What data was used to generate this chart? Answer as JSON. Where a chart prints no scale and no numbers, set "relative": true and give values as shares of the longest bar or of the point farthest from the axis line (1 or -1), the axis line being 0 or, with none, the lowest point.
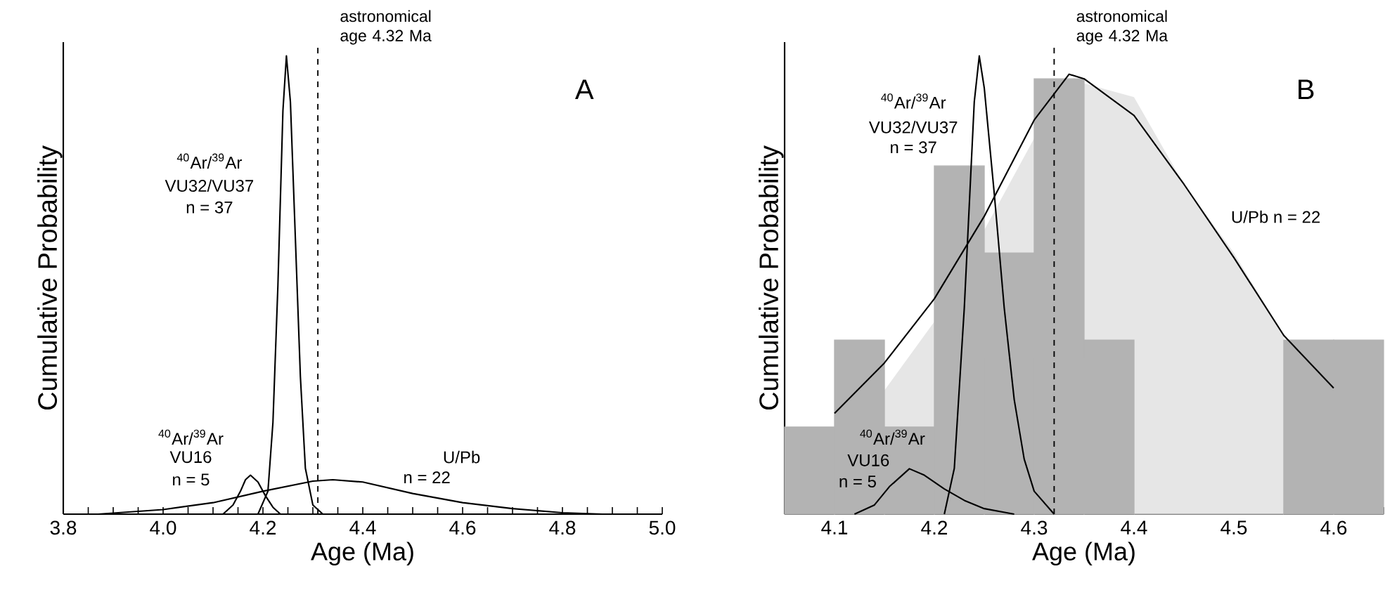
{
  "chart_data": [
    {
      "type": "line",
      "title": "A",
      "xlabel": "Age (Ma)",
      "ylabel": "Cumulative Probability",
      "relative": true,
      "xlim": [
        3.8,
        5.0
      ],
      "xticks": [
        3.8,
        {
          "value": 3.85,
          "label": null
        },
        {
          "value": 3.9,
          "label": null
        },
        {
          "value": 3.95,
          "label": null
        },
        {
          "value": 4.0,
          "label": "4.0"
        },
        {
          "value": 4.05,
          "label": null
        },
        {
          "value": 4.1,
          "label": null
        },
        {
          "value": 4.15,
          "label": null
        },
        4.2,
        {
          "value": 4.25,
          "label": null
        },
        {
          "value": 4.3,
          "label": null
        },
        {
          "value": 4.35,
          "label": null
        },
        4.4,
        {
          "value": 4.45,
          "label": null
        },
        {
          "value": 4.5,
          "label": null
        },
        {
          "value": 4.55,
          "label": null
        },
        4.6,
        {
          "value": 4.65,
          "label": null
        },
        {
          "value": 4.7,
          "label": null
        },
        {
          "value": 4.75,
          "label": null
        },
        4.8,
        {
          "value": 4.85,
          "label": null
        },
        {
          "value": 4.9,
          "label": null
        },
        {
          "value": 4.95,
          "label": null
        },
        {
          "value": 5.0,
          "label": "5.0"
        }
      ],
      "series": [
        {
          "type": "line",
          "color": "#000000",
          "x": [
            4.19,
            4.21,
            4.22,
            4.23,
            4.24,
            4.247,
            4.255,
            4.265,
            4.275,
            4.285,
            4.3,
            4.32
          ],
          "values": [
            0,
            0.05,
            0.2,
            0.5,
            0.88,
            1,
            0.9,
            0.6,
            0.3,
            0.1,
            0.02,
            0
          ]
        },
        {
          "type": "line",
          "color": "#000000",
          "x": [
            4.12,
            4.14,
            4.155,
            4.165,
            4.175,
            4.19,
            4.205,
            4.22,
            4.235
          ],
          "values": [
            0,
            0.02,
            0.05,
            0.075,
            0.085,
            0.07,
            0.04,
            0.015,
            0
          ]
        },
        {
          "type": "line",
          "color": "#000000",
          "x": [
            3.87,
            4.0,
            4.1,
            4.2,
            4.3,
            4.34,
            4.4,
            4.5,
            4.6,
            4.7,
            4.8,
            4.88
          ],
          "values": [
            0,
            0.01,
            0.025,
            0.05,
            0.072,
            0.075,
            0.07,
            0.045,
            0.025,
            0.012,
            0.003,
            0
          ]
        }
      ],
      "ref_lines": [
        {
          "axis": "x",
          "value": 4.31,
          "label": "astronomical age 4.32 Ma",
          "line_style": "dashed"
        }
      ],
      "annotations": [
        "$^{40}$Ar/$^{39}$Ar",
        "VU32/VU37",
        "n = 37",
        "$^{40}$Ar/$^{39}$Ar",
        "VU16",
        "n = 5",
        "U/Pb",
        "n = 22"
      ]
    },
    {
      "type": "histogram",
      "title": "B",
      "xlabel": "Age (Ma)",
      "ylabel": "Cumulative Probability",
      "relative": true,
      "xlim": [
        4.05,
        4.65
      ],
      "xticks": [
        {
          "value": 4.05,
          "label": null
        },
        {
          "value": 4.075,
          "label": null
        },
        4.1,
        {
          "value": 4.125,
          "label": null
        },
        {
          "value": 4.15,
          "label": null
        },
        {
          "value": 4.175,
          "label": null
        },
        4.2,
        {
          "value": 4.225,
          "label": null
        },
        {
          "value": 4.25,
          "label": null
        },
        {
          "value": 4.275,
          "label": null
        },
        4.3,
        {
          "value": 4.325,
          "label": null
        },
        {
          "value": 4.35,
          "label": null
        },
        {
          "value": 4.375,
          "label": null
        },
        4.4,
        {
          "value": 4.425,
          "label": null
        },
        {
          "value": 4.45,
          "label": null
        },
        {
          "value": 4.475,
          "label": null
        },
        4.5,
        {
          "value": 4.525,
          "label": null
        },
        {
          "value": 4.55,
          "label": null
        },
        {
          "value": 4.575,
          "label": null
        },
        4.6,
        {
          "value": 4.625,
          "label": null
        },
        {
          "value": 4.65,
          "label": null
        }
      ],
      "bins": [
        4.05,
        4.1,
        4.15,
        4.2,
        4.25,
        4.3,
        4.35,
        4.4,
        4.45,
        4.5,
        4.55,
        4.6,
        4.65
      ],
      "values": [
        0.19,
        0.38,
        0.19,
        0.76,
        0.57,
        0.95,
        0.38,
        0,
        0,
        0,
        0.38,
        0.38
      ],
      "color": "#b3b3b3",
      "series": [
        {
          "type": "area",
          "color": "#e6e6e6",
          "x": [
            4.1,
            4.15,
            4.2,
            4.25,
            4.3,
            4.35,
            4.4,
            4.45,
            4.5,
            4.55,
            4.55
          ],
          "values": [
            0,
            0.27,
            0.42,
            0.62,
            0.82,
            0.94,
            0.91,
            0.72,
            0.57,
            0.39,
            0
          ]
        },
        {
          "type": "line",
          "color": "#000000",
          "x": [
            4.1,
            4.15,
            4.2,
            4.25,
            4.3,
            4.335,
            4.35,
            4.4,
            4.45,
            4.5,
            4.55,
            4.6
          ],
          "values": [
            0.22,
            0.33,
            0.47,
            0.65,
            0.86,
            0.96,
            0.95,
            0.87,
            0.72,
            0.56,
            0.39,
            0.275
          ]
        },
        {
          "type": "line",
          "color": "#000000",
          "x": [
            4.21,
            4.22,
            4.23,
            4.24,
            4.245,
            4.25,
            4.26,
            4.27,
            4.28,
            4.29,
            4.3,
            4.32
          ],
          "values": [
            0,
            0.1,
            0.45,
            0.9,
            1,
            0.93,
            0.7,
            0.45,
            0.25,
            0.12,
            0.05,
            0
          ]
        },
        {
          "type": "line",
          "color": "#000000",
          "x": [
            4.12,
            4.14,
            4.155,
            4.175,
            4.19,
            4.21,
            4.23,
            4.25,
            4.28
          ],
          "values": [
            0,
            0.02,
            0.06,
            0.099,
            0.085,
            0.055,
            0.03,
            0.012,
            0
          ]
        }
      ],
      "ref_lines": [
        {
          "axis": "x",
          "value": 4.32,
          "label": "astronomical age 4.32 Ma",
          "line_style": "dashed"
        }
      ],
      "annotations": [
        "$^{40}$Ar/$^{39}$Ar",
        "VU32/VU37",
        "n = 37",
        "$^{40}$Ar/$^{39}$Ar",
        "VU16",
        "n = 5",
        "U/Pb n = 22"
      ]
    }
  ]
}
